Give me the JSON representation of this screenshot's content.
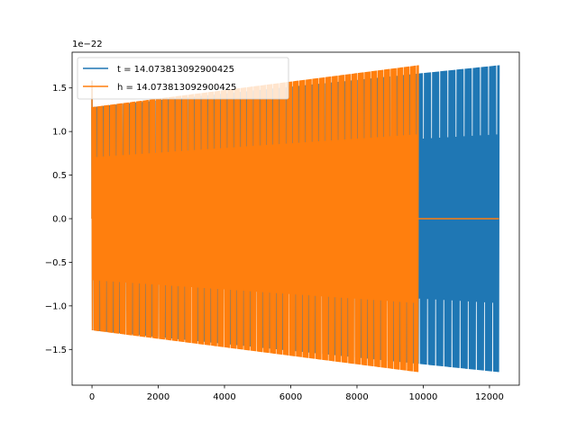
{
  "chart_data": {
    "type": "line",
    "title": "",
    "xlabel": "",
    "ylabel": "",
    "y_offset_label": "1e−22",
    "xlim": [
      -600,
      12900
    ],
    "ylim": [
      -1.91,
      1.91
    ],
    "y_scale_factor": 1e-22,
    "x_ticks": [
      0,
      2000,
      4000,
      6000,
      8000,
      10000,
      12000
    ],
    "x_tick_labels": [
      "0",
      "2000",
      "4000",
      "6000",
      "8000",
      "10000",
      "12000"
    ],
    "y_ticks": [
      -1.5,
      -1.0,
      -0.5,
      0.0,
      0.5,
      1.0,
      1.5
    ],
    "y_tick_labels": [
      "−1.5",
      "−1.0",
      "−0.5",
      "0.0",
      "0.5",
      "1.0",
      "1.5"
    ],
    "grid": false,
    "legend_position": "top-left",
    "series": [
      {
        "name": "t = 14.073813092900425",
        "color": "#1f77b4",
        "envelope": {
          "x": [
            0,
            12288
          ],
          "amplitude_start": 1.28,
          "amplitude_end": 1.76
        },
        "style": "dense-oscillation"
      },
      {
        "name": "h = 14.073813092900425",
        "color": "#ff7f0e",
        "envelope": {
          "x": [
            0,
            9850
          ],
          "amplitude_start": 1.28,
          "amplitude_end": 1.76
        },
        "tail": {
          "x": [
            9850,
            12288
          ],
          "value": 0.0
        },
        "style": "dense-oscillation"
      }
    ]
  }
}
